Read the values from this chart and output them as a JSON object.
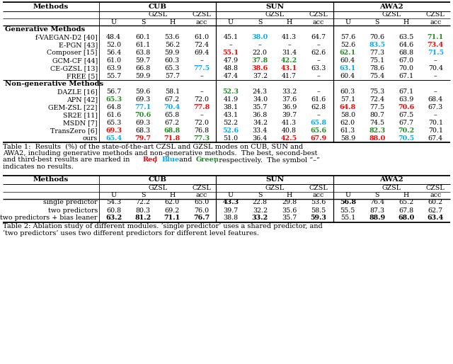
{
  "table1_rows": [
    {
      "method": "Generative Methods",
      "is_section": true
    },
    {
      "method": "f-VAEGAN-D2 [40]",
      "vals": [
        "48.4",
        "60.1",
        "53.6",
        "61.0",
        "45.1",
        "38.0",
        "41.3",
        "64.7",
        "57.6",
        "70.6",
        "63.5",
        "71.1"
      ],
      "colors": [
        "k",
        "k",
        "k",
        "k",
        "k",
        "#00aaff",
        "k",
        "k",
        "k",
        "k",
        "k",
        "#228B22"
      ]
    },
    {
      "method": "E-PGN [43]",
      "vals": [
        "52.0",
        "61.1",
        "56.2",
        "72.4",
        "–",
        "–",
        "–",
        "–",
        "52.6",
        "83.5",
        "64.6",
        "73.4"
      ],
      "colors": [
        "k",
        "k",
        "k",
        "k",
        "k",
        "k",
        "k",
        "k",
        "k",
        "#00aaff",
        "k",
        "red"
      ]
    },
    {
      "method": "Composer [15]",
      "vals": [
        "56.4",
        "63.8",
        "59.9",
        "69.4",
        "55.1",
        "22.0",
        "31.4",
        "62.6",
        "62.1",
        "77.3",
        "68.8",
        "71.5"
      ],
      "colors": [
        "k",
        "k",
        "k",
        "k",
        "red",
        "k",
        "k",
        "k",
        "#228B22",
        "k",
        "k",
        "#00aaff"
      ]
    },
    {
      "method": "GCM-CF [44]",
      "vals": [
        "61.0",
        "59.7",
        "60.3",
        "–",
        "47.9",
        "37.8",
        "42.2",
        "–",
        "60.4",
        "75.1",
        "67.0",
        "–"
      ],
      "colors": [
        "k",
        "k",
        "k",
        "k",
        "k",
        "#228B22",
        "#228B22",
        "k",
        "k",
        "k",
        "k",
        "k"
      ]
    },
    {
      "method": "CE-GZSL [13]",
      "vals": [
        "63.9",
        "66.8",
        "65.3",
        "77.5",
        "48.8",
        "38.6",
        "43.1",
        "63.3",
        "63.1",
        "78.6",
        "70.0",
        "70.4"
      ],
      "colors": [
        "k",
        "k",
        "k",
        "#00aaff",
        "k",
        "red",
        "red",
        "k",
        "#00aaff",
        "k",
        "k",
        "k"
      ]
    },
    {
      "method": "FREE [5]",
      "vals": [
        "55.7",
        "59.9",
        "57.7",
        "–",
        "47.4",
        "37.2",
        "41.7",
        "–",
        "60.4",
        "75.4",
        "67.1",
        "–"
      ],
      "colors": [
        "k",
        "k",
        "k",
        "k",
        "k",
        "k",
        "k",
        "k",
        "k",
        "k",
        "k",
        "k"
      ]
    },
    {
      "method": "Non-generative Methods",
      "is_section": true
    },
    {
      "method": "DAZLE [16]",
      "vals": [
        "56.7",
        "59.6",
        "58.1",
        "–",
        "52.3",
        "24.3",
        "33.2",
        "–",
        "60.3",
        "75.3",
        "67.1",
        "–"
      ],
      "colors": [
        "k",
        "k",
        "k",
        "k",
        "#228B22",
        "k",
        "k",
        "k",
        "k",
        "k",
        "k",
        "k"
      ]
    },
    {
      "method": "APN [42]",
      "vals": [
        "65.3",
        "69.3",
        "67.2",
        "72.0",
        "41.9",
        "34.0",
        "37.6",
        "61.6",
        "57.1",
        "72.4",
        "63.9",
        "68.4"
      ],
      "colors": [
        "#228B22",
        "k",
        "k",
        "k",
        "k",
        "k",
        "k",
        "k",
        "k",
        "k",
        "k",
        "k"
      ]
    },
    {
      "method": "GEM-ZSL [22]",
      "vals": [
        "64.8",
        "77.1",
        "70.4",
        "77.8",
        "38.1",
        "35.7",
        "36.9",
        "62.8",
        "64.8",
        "77.5",
        "70.6",
        "67.3"
      ],
      "colors": [
        "k",
        "#00aaff",
        "#00aaff",
        "red",
        "k",
        "k",
        "k",
        "k",
        "red",
        "k",
        "red",
        "k"
      ]
    },
    {
      "method": "SR2E [11]",
      "vals": [
        "61.6",
        "70.6",
        "65.8",
        "–",
        "43.1",
        "36.8",
        "39.7",
        "–",
        "58.0",
        "80.7",
        "67.5",
        "–"
      ],
      "colors": [
        "k",
        "#228B22",
        "k",
        "k",
        "k",
        "k",
        "k",
        "k",
        "k",
        "k",
        "k",
        "k"
      ]
    },
    {
      "method": "MSDN [7]",
      "vals": [
        "65.3",
        "69.3",
        "67.2",
        "72.0",
        "52.2",
        "34.2",
        "41.3",
        "65.8",
        "62.0",
        "74.5",
        "67.7",
        "70.1"
      ],
      "colors": [
        "k",
        "k",
        "k",
        "k",
        "k",
        "k",
        "k",
        "#00aaff",
        "k",
        "k",
        "k",
        "k"
      ]
    },
    {
      "method": "TransZero [6]",
      "vals": [
        "69.3",
        "68.3",
        "68.8",
        "76.8",
        "52.6",
        "33.4",
        "40.8",
        "65.6",
        "61.3",
        "82.3",
        "70.2",
        "70.1"
      ],
      "colors": [
        "red",
        "k",
        "#228B22",
        "k",
        "#00aaff",
        "k",
        "k",
        "#228B22",
        "k",
        "#228B22",
        "#228B22",
        "k"
      ]
    },
    {
      "method": "ours",
      "vals": [
        "65.4",
        "79.7",
        "71.8",
        "77.3",
        "51.0",
        "36.4",
        "42.5",
        "67.9",
        "58.9",
        "88.0",
        "70.5",
        "67.4"
      ],
      "colors": [
        "#00aaff",
        "red",
        "red",
        "#228B22",
        "k",
        "k",
        "red",
        "red",
        "k",
        "red",
        "#00aaff",
        "k"
      ]
    }
  ],
  "table2_rows": [
    {
      "method": "single predictor",
      "vals": [
        "54.3",
        "72.2",
        "62.0",
        "65.0",
        "43.3",
        "22.8",
        "29.8",
        "53.6",
        "56.8",
        "76.4",
        "65.2",
        "60.2"
      ],
      "bold": [
        false,
        false,
        false,
        false,
        true,
        false,
        false,
        false,
        true,
        false,
        false,
        false
      ]
    },
    {
      "method": "two predictors",
      "vals": [
        "60.8",
        "80.3",
        "69.2",
        "76.0",
        "39.7",
        "32.2",
        "35.6",
        "58.5",
        "55.5",
        "87.3",
        "67.8",
        "62.7"
      ],
      "bold": [
        false,
        false,
        false,
        false,
        false,
        false,
        false,
        false,
        false,
        false,
        false,
        false
      ]
    },
    {
      "method": "two predictors + bias leaner",
      "vals": [
        "63.2",
        "81.2",
        "71.1",
        "76.7",
        "38.8",
        "33.2",
        "35.7",
        "59.3",
        "55.1",
        "88.9",
        "68.0",
        "63.4"
      ],
      "bold": [
        true,
        true,
        true,
        true,
        false,
        true,
        false,
        true,
        false,
        true,
        true,
        true
      ]
    }
  ],
  "col_labels": [
    "U",
    "S",
    "H",
    "acc",
    "U",
    "S",
    "H",
    "acc",
    "U",
    "S",
    "H",
    "acc"
  ]
}
